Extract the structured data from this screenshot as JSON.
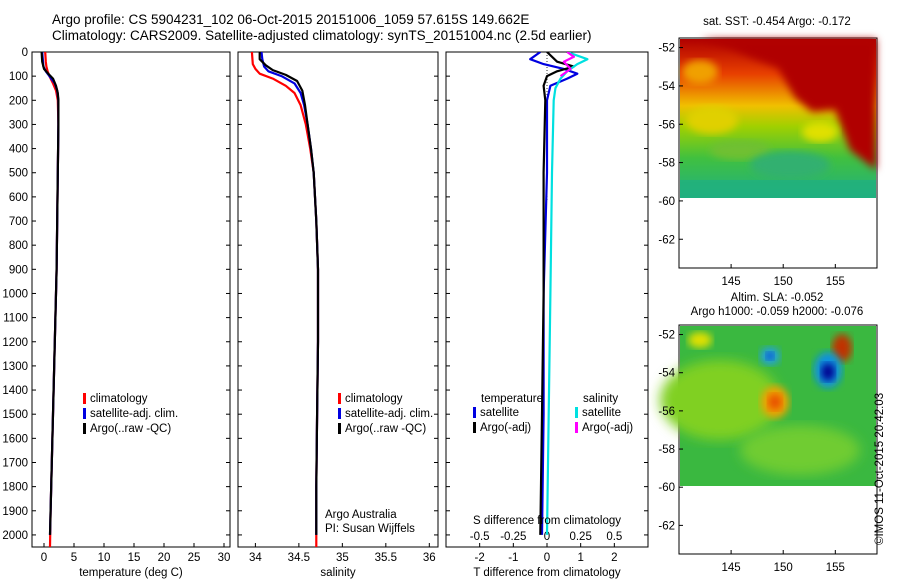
{
  "header": {
    "line1": "Argo profile: CS 5904231_102 06-Oct-2015 20151006_1059 57.615S 149.662E",
    "line2": "Climatology: CARS2009. Satellite-adjusted climatology: synTS_20151004.nc (2.5d earlier)"
  },
  "credit": "©IMOS 11-Oct-2015 20:42:03",
  "colors": {
    "climatology": "#ff0000",
    "satellite": "#0000e0",
    "argo": "#000000",
    "satellite_s": "#00e0e0",
    "argo_s": "#ff00ff"
  },
  "chart_data": [
    {
      "type": "line",
      "xlabel": "temperature (deg C)",
      "xlim": [
        -2,
        31
      ],
      "xticks": [
        0,
        5,
        10,
        15,
        20,
        25,
        30
      ],
      "ylim": [
        0,
        2050
      ],
      "yticks": [
        0,
        100,
        200,
        300,
        400,
        500,
        600,
        700,
        800,
        900,
        1000,
        1100,
        1200,
        1300,
        1400,
        1500,
        1600,
        1700,
        1800,
        1900,
        2000
      ],
      "yinverted": true,
      "legend": [
        "climatology",
        "satellite-adj. clim.",
        "Argo(..raw -QC)"
      ],
      "series": [
        {
          "name": "climatology",
          "color": "#ff0000",
          "points": [
            [
              0.2,
              0
            ],
            [
              0.3,
              40
            ],
            [
              0.4,
              60
            ],
            [
              0.6,
              80
            ],
            [
              0.9,
              100
            ],
            [
              1.5,
              130
            ],
            [
              2.0,
              160
            ],
            [
              2.3,
              200
            ],
            [
              2.4,
              300
            ],
            [
              2.3,
              500
            ],
            [
              2.2,
              700
            ],
            [
              2.1,
              900
            ],
            [
              1.9,
              1100
            ],
            [
              1.7,
              1300
            ],
            [
              1.5,
              1500
            ],
            [
              1.3,
              1700
            ],
            [
              1.1,
              1900
            ],
            [
              1.0,
              2050
            ]
          ]
        },
        {
          "name": "satellite-adj. clim.",
          "color": "#0000e0",
          "points": [
            [
              -0.3,
              0
            ],
            [
              -0.2,
              30
            ],
            [
              -0.1,
              60
            ],
            [
              0.3,
              80
            ],
            [
              0.9,
              100
            ],
            [
              1.8,
              130
            ],
            [
              2.2,
              160
            ],
            [
              2.4,
              200
            ],
            [
              2.4,
              300
            ],
            [
              2.3,
              500
            ],
            [
              2.2,
              700
            ],
            [
              2.1,
              900
            ],
            [
              1.9,
              1100
            ],
            [
              1.7,
              1300
            ],
            [
              1.5,
              1500
            ],
            [
              1.3,
              1700
            ],
            [
              1.1,
              1900
            ],
            [
              1.0,
              2000
            ]
          ]
        },
        {
          "name": "Argo(..raw -QC)",
          "color": "#000000",
          "points": [
            [
              -0.4,
              0
            ],
            [
              -0.3,
              40
            ],
            [
              0.0,
              70
            ],
            [
              0.7,
              90
            ],
            [
              1.5,
              110
            ],
            [
              2.0,
              140
            ],
            [
              2.3,
              170
            ],
            [
              2.4,
              200
            ],
            [
              2.4,
              300
            ],
            [
              2.3,
              500
            ],
            [
              2.2,
              700
            ],
            [
              2.1,
              900
            ],
            [
              1.9,
              1100
            ],
            [
              1.7,
              1300
            ],
            [
              1.5,
              1500
            ],
            [
              1.3,
              1700
            ],
            [
              1.1,
              1900
            ],
            [
              1.0,
              2000
            ]
          ]
        }
      ]
    },
    {
      "type": "line",
      "xlabel": "salinity",
      "xlim": [
        33.8,
        36.1
      ],
      "xticks": [
        34,
        34.5,
        35,
        35.5,
        36
      ],
      "xticklabels": [
        "34",
        "34.5",
        "35",
        "35.5",
        "36"
      ],
      "ylim": [
        0,
        2050
      ],
      "yinverted": true,
      "legend": [
        "climatology",
        "satellite-adj. clim.",
        "Argo(..raw -QC)"
      ],
      "annotations": [
        "Argo Australia",
        "PI: Susan Wijffels"
      ],
      "series": [
        {
          "name": "climatology",
          "color": "#ff0000",
          "points": [
            [
              33.96,
              0
            ],
            [
              33.97,
              50
            ],
            [
              34.0,
              70
            ],
            [
              34.05,
              90
            ],
            [
              34.2,
              110
            ],
            [
              34.35,
              140
            ],
            [
              34.45,
              170
            ],
            [
              34.52,
              220
            ],
            [
              34.58,
              300
            ],
            [
              34.63,
              400
            ],
            [
              34.67,
              500
            ],
            [
              34.7,
              700
            ],
            [
              34.72,
              900
            ],
            [
              34.72,
              1200
            ],
            [
              34.71,
              1500
            ],
            [
              34.7,
              1800
            ],
            [
              34.7,
              2050
            ]
          ]
        },
        {
          "name": "satellite-adj. clim.",
          "color": "#0000e0",
          "points": [
            [
              34.07,
              0
            ],
            [
              34.08,
              30
            ],
            [
              34.1,
              60
            ],
            [
              34.15,
              80
            ],
            [
              34.3,
              100
            ],
            [
              34.45,
              130
            ],
            [
              34.52,
              170
            ],
            [
              34.56,
              220
            ],
            [
              34.6,
              300
            ],
            [
              34.64,
              400
            ],
            [
              34.67,
              500
            ],
            [
              34.7,
              700
            ],
            [
              34.72,
              900
            ],
            [
              34.72,
              1200
            ],
            [
              34.71,
              1500
            ],
            [
              34.7,
              1800
            ],
            [
              34.7,
              2000
            ]
          ]
        },
        {
          "name": "Argo(..raw -QC)",
          "color": "#000000",
          "points": [
            [
              34.05,
              0
            ],
            [
              34.05,
              30
            ],
            [
              34.12,
              55
            ],
            [
              34.2,
              75
            ],
            [
              34.35,
              95
            ],
            [
              34.48,
              120
            ],
            [
              34.54,
              160
            ],
            [
              34.57,
              220
            ],
            [
              34.6,
              300
            ],
            [
              34.64,
              400
            ],
            [
              34.67,
              500
            ],
            [
              34.7,
              700
            ],
            [
              34.72,
              900
            ],
            [
              34.72,
              1200
            ],
            [
              34.71,
              1500
            ],
            [
              34.7,
              1800
            ],
            [
              34.7,
              2000
            ]
          ]
        }
      ]
    },
    {
      "type": "line",
      "xlabel": "T difference from climatology",
      "xlabel_top": "S difference from climatology",
      "xlim": [
        -3,
        3
      ],
      "xticks": [
        -2,
        -1,
        0,
        1,
        2
      ],
      "xticks_top_labels": [
        "-0.5",
        "-0.25",
        "0",
        "0.25",
        "0.5"
      ],
      "ylim": [
        0,
        2050
      ],
      "yinverted": true,
      "legend_titles": [
        "temperature",
        "salinity"
      ],
      "legend": [
        "satellite",
        "Argo(-adj)",
        "satellite",
        "Argo(-adj)"
      ],
      "series": [
        {
          "name": "satellite",
          "color": "#0000e0",
          "points": [
            [
              -0.2,
              0
            ],
            [
              -0.5,
              30
            ],
            [
              -0.1,
              50
            ],
            [
              0.5,
              70
            ],
            [
              0.9,
              90
            ],
            [
              0.6,
              110
            ],
            [
              0.1,
              140
            ],
            [
              0.0,
              200
            ],
            [
              0.0,
              500
            ],
            [
              -0.1,
              1000
            ],
            [
              -0.1,
              1500
            ],
            [
              -0.15,
              2000
            ]
          ]
        },
        {
          "name": "Argo(-adj)",
          "color": "#000000",
          "points": [
            [
              0.0,
              0
            ],
            [
              0.3,
              40
            ],
            [
              0.8,
              60
            ],
            [
              0.3,
              80
            ],
            [
              0.0,
              100
            ],
            [
              -0.1,
              140
            ],
            [
              -0.05,
              200
            ],
            [
              -0.1,
              500
            ],
            [
              -0.1,
              1000
            ],
            [
              -0.15,
              1500
            ],
            [
              -0.2,
              2000
            ]
          ]
        },
        {
          "name": "satellite",
          "color": "#00e0e0",
          "points": [
            [
              0.6,
              0
            ],
            [
              1.2,
              30
            ],
            [
              0.9,
              50
            ],
            [
              0.6,
              80
            ],
            [
              0.4,
              110
            ],
            [
              0.25,
              150
            ],
            [
              0.2,
              200
            ],
            [
              0.15,
              500
            ],
            [
              0.1,
              1000
            ],
            [
              0.05,
              1500
            ],
            [
              0.0,
              2000
            ]
          ]
        },
        {
          "name": "Argo(-adj)",
          "color": "#ff00ff",
          "points": [
            [
              0.6,
              0
            ],
            [
              0.8,
              20
            ],
            [
              0.5,
              40
            ],
            [
              0.7,
              70
            ],
            [
              0.4,
              100
            ]
          ]
        }
      ]
    },
    {
      "type": "heatmap",
      "title": "sat. SST: -0.454 Argo: -0.172",
      "xlim": [
        140,
        159
      ],
      "ylim": [
        -63.5,
        -51.5
      ],
      "xticks": [
        145,
        150,
        155
      ],
      "yticks": [
        -52,
        -54,
        -56,
        -58,
        -60,
        -62
      ],
      "data_ylim": [
        -60,
        -51.5
      ]
    },
    {
      "type": "heatmap",
      "title": "Altim. SLA: -0.052",
      "subtitle": "Argo h1000: -0.059 h2000: -0.076",
      "xlim": [
        140,
        159
      ],
      "ylim": [
        -63.5,
        -51.5
      ],
      "xticks": [
        145,
        150,
        155
      ],
      "yticks": [
        -52,
        -54,
        -56,
        -58,
        -60,
        -62
      ],
      "data_ylim": [
        -60,
        -51.5
      ]
    }
  ]
}
